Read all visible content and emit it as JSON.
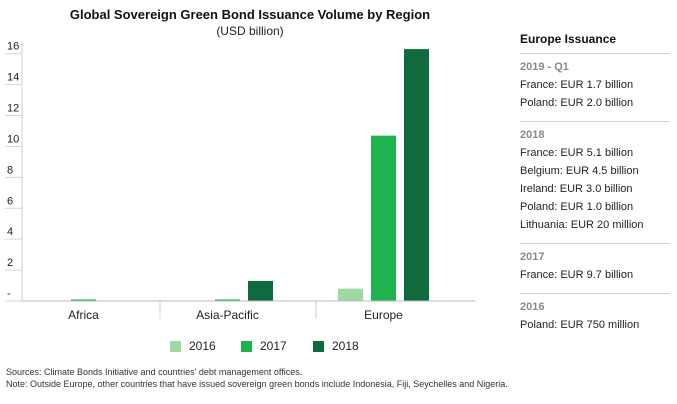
{
  "chart_data": {
    "type": "bar",
    "title": "Global Sovereign Green Bond Issuance Volume by Region",
    "subtitle": "(USD billion)",
    "categories": [
      "Africa",
      "Asia-Pacific",
      "Europe"
    ],
    "series": [
      {
        "name": "2016",
        "color": "#9fd9a2",
        "values": [
          0,
          0,
          0.8
        ]
      },
      {
        "name": "2017",
        "color": "#1fb350",
        "values": [
          0.1,
          0.1,
          10.7
        ]
      },
      {
        "name": "2018",
        "color": "#0f6b3e",
        "values": [
          0,
          1.3,
          16.3
        ]
      }
    ],
    "ylim": [
      0,
      16.5
    ],
    "yticks": [
      0,
      2,
      4,
      6,
      8,
      10,
      12,
      14,
      16
    ],
    "ytick_labels": [
      "-",
      "2",
      "4",
      "6",
      "8",
      "10",
      "12",
      "14",
      "16"
    ],
    "xlabel": "",
    "ylabel": "",
    "legend_position": "bottom",
    "grid": false
  },
  "sidebar": {
    "heading": "Europe Issuance",
    "groups": [
      {
        "label": "2019 - Q1",
        "entries": [
          "France: EUR 1.7 billion",
          "Poland: EUR 2.0 billion"
        ]
      },
      {
        "label": "2018",
        "entries": [
          "France: EUR 5.1 billion",
          "Belgium: EUR 4.5 billion",
          "Ireland: EUR 3.0 billion",
          "Poland: EUR 1.0 billion",
          "Lithuania: EUR 20 million"
        ]
      },
      {
        "label": "2017",
        "entries": [
          "France: EUR 9.7 billion"
        ]
      },
      {
        "label": "2016",
        "entries": [
          "Poland:  EUR 750 million"
        ]
      }
    ]
  },
  "footnotes": {
    "sources": "Sources: Climate Bonds Initiative and countries' debt management offices.",
    "note": "Note: Outside Europe, other countries that have issued sovereign green bonds include Indonesia, Fiji, Seychelles and Nigeria."
  }
}
